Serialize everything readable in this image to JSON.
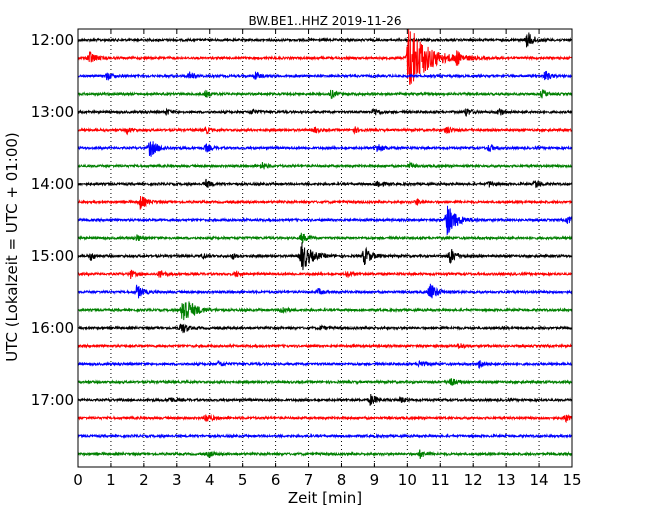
{
  "chart_data": {
    "type": "line",
    "title": "BW.BE1..HHZ 2019-11-26",
    "xlabel": "Zeit  [min]",
    "ylabel": "UTC (Lokalzeit = UTC + 01:00)",
    "xlim": [
      0,
      15
    ],
    "x_ticks": [
      "0",
      "1",
      "2",
      "3",
      "4",
      "5",
      "6",
      "7",
      "8",
      "9",
      "10",
      "11",
      "12",
      "13",
      "14",
      "15"
    ],
    "y_tick_labels": [
      "12:00",
      "13:00",
      "14:00",
      "15:00",
      "16:00",
      "17:00"
    ],
    "grid": "vertical dotted",
    "trace_colors": [
      "#000000",
      "#ff0000",
      "#0000ff",
      "#008000"
    ],
    "traces": [
      {
        "start": "12:00",
        "events": [
          [
            13.65,
            8
          ]
        ]
      },
      {
        "start": "12:15",
        "events": [
          [
            10.05,
            35
          ],
          [
            0.35,
            7
          ],
          [
            11.5,
            6
          ]
        ]
      },
      {
        "start": "12:30",
        "events": [
          [
            0.9,
            4
          ],
          [
            3.4,
            4
          ],
          [
            5.4,
            4
          ],
          [
            14.2,
            5
          ]
        ]
      },
      {
        "start": "12:45",
        "events": [
          [
            3.9,
            3
          ],
          [
            7.7,
            4
          ],
          [
            14.1,
            4
          ]
        ]
      },
      {
        "start": "13:00",
        "events": [
          [
            2.7,
            3
          ],
          [
            5.3,
            3
          ],
          [
            9.0,
            4
          ],
          [
            11.8,
            4
          ],
          [
            12.8,
            4
          ]
        ]
      },
      {
        "start": "13:15",
        "events": [
          [
            1.5,
            3
          ],
          [
            3.9,
            3
          ],
          [
            7.2,
            3
          ],
          [
            8.4,
            3
          ],
          [
            11.2,
            4
          ]
        ]
      },
      {
        "start": "13:30",
        "events": [
          [
            2.2,
            9
          ],
          [
            3.9,
            4
          ],
          [
            9.1,
            5
          ],
          [
            12.5,
            4
          ]
        ]
      },
      {
        "start": "13:45",
        "events": [
          [
            5.6,
            4
          ],
          [
            10.1,
            3
          ]
        ]
      },
      {
        "start": "14:00",
        "events": [
          [
            3.9,
            4
          ],
          [
            9.1,
            4
          ],
          [
            12.5,
            3
          ],
          [
            13.9,
            4
          ]
        ]
      },
      {
        "start": "14:15",
        "events": [
          [
            1.9,
            7
          ],
          [
            10.3,
            3
          ]
        ]
      },
      {
        "start": "14:30",
        "events": [
          [
            11.2,
            16
          ],
          [
            14.9,
            5
          ]
        ]
      },
      {
        "start": "14:45",
        "events": [
          [
            1.8,
            3
          ],
          [
            6.8,
            5
          ]
        ]
      },
      {
        "start": "15:00",
        "events": [
          [
            6.8,
            15
          ],
          [
            8.7,
            9
          ],
          [
            11.3,
            8
          ],
          [
            0.4,
            4
          ],
          [
            3.8,
            3
          ],
          [
            4.7,
            3
          ]
        ]
      },
      {
        "start": "15:15",
        "events": [
          [
            1.6,
            4
          ],
          [
            2.5,
            4
          ],
          [
            4.8,
            3
          ],
          [
            8.2,
            3
          ]
        ]
      },
      {
        "start": "15:30",
        "events": [
          [
            1.8,
            7
          ],
          [
            10.7,
            9
          ],
          [
            7.3,
            3
          ]
        ]
      },
      {
        "start": "15:45",
        "events": [
          [
            3.2,
            16
          ],
          [
            6.2,
            4
          ]
        ]
      },
      {
        "start": "16:00",
        "events": [
          [
            3.15,
            6
          ],
          [
            7.4,
            2
          ]
        ]
      },
      {
        "start": "16:15",
        "events": [
          [
            11.6,
            3
          ]
        ]
      },
      {
        "start": "16:30",
        "events": [
          [
            10.4,
            4
          ],
          [
            12.2,
            4
          ],
          [
            4.3,
            3
          ]
        ]
      },
      {
        "start": "16:45",
        "events": [
          [
            11.3,
            5
          ]
        ]
      },
      {
        "start": "17:00",
        "events": [
          [
            8.9,
            6
          ],
          [
            2.8,
            3
          ],
          [
            9.8,
            3
          ]
        ]
      },
      {
        "start": "17:15",
        "events": [
          [
            3.9,
            5
          ],
          [
            14.8,
            4
          ]
        ]
      },
      {
        "start": "17:30",
        "events": []
      },
      {
        "start": "17:45",
        "events": [
          [
            4.0,
            3
          ],
          [
            10.4,
            4
          ]
        ]
      }
    ]
  }
}
